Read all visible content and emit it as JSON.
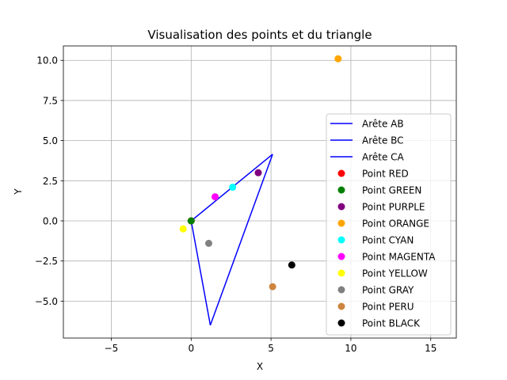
{
  "chart_data": {
    "type": "scatter",
    "title": "Visualisation des points et du triangle",
    "xlabel": "X",
    "ylabel": "Y",
    "xlim": [
      -8.0,
      16.6
    ],
    "ylim": [
      -7.3,
      10.9
    ],
    "xticks": [
      -5,
      0,
      5,
      10,
      15
    ],
    "xtick_labels": [
      "−5",
      "0",
      "5",
      "10",
      "15"
    ],
    "yticks": [
      -5.0,
      -2.5,
      0.0,
      2.5,
      5.0,
      7.5,
      10.0
    ],
    "ytick_labels": [
      "−5.0",
      "−2.5",
      "0.0",
      "2.5",
      "5.0",
      "7.5",
      "10.0"
    ],
    "grid": true,
    "legend_position": "lower right",
    "lines": [
      {
        "name": "Arête AB",
        "color": "#0000ff",
        "x": [
          0.0,
          5.1
        ],
        "y": [
          0.0,
          4.15
        ]
      },
      {
        "name": "Arête BC",
        "color": "#0000ff",
        "x": [
          5.1,
          1.2
        ],
        "y": [
          4.15,
          -6.5
        ]
      },
      {
        "name": "Arête CA",
        "color": "#0000ff",
        "x": [
          1.2,
          0.0
        ],
        "y": [
          -6.5,
          0.0
        ]
      }
    ],
    "points": [
      {
        "name": "Point RED",
        "color": "#ff0000",
        "x": 0.0,
        "y": 0.0
      },
      {
        "name": "Point GREEN",
        "color": "#008000",
        "x": 0.0,
        "y": 0.0
      },
      {
        "name": "Point PURPLE",
        "color": "#800080",
        "x": 4.2,
        "y": 3.0
      },
      {
        "name": "Point ORANGE",
        "color": "#ffa500",
        "x": 9.2,
        "y": 10.1
      },
      {
        "name": "Point CYAN",
        "color": "#00ffff",
        "x": 2.6,
        "y": 2.1
      },
      {
        "name": "Point MAGENTA",
        "color": "#ff00ff",
        "x": 1.5,
        "y": 1.5
      },
      {
        "name": "Point YELLOW",
        "color": "#ffff00",
        "x": -0.5,
        "y": -0.5
      },
      {
        "name": "Point GRAY",
        "color": "#808080",
        "x": 1.1,
        "y": -1.4
      },
      {
        "name": "Point PERU",
        "color": "#cd853f",
        "x": 5.1,
        "y": -4.1
      },
      {
        "name": "Point BLACK",
        "color": "#000000",
        "x": 6.3,
        "y": -2.75
      }
    ]
  }
}
